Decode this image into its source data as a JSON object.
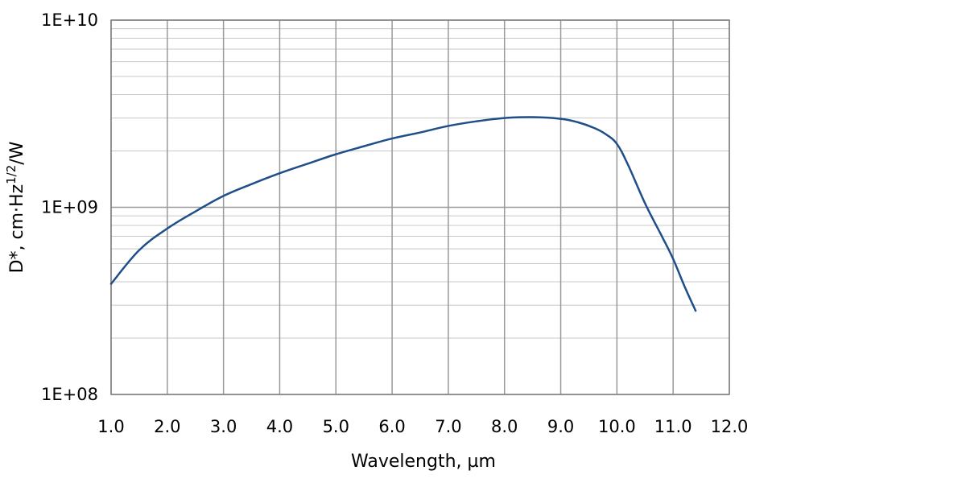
{
  "chart_data": {
    "type": "line",
    "xlabel": "Wavelength, µm",
    "ylabel": {
      "prefix": "D*, cm·Hz",
      "superscript": "1/2",
      "suffix": "/W"
    },
    "x_scale": "linear",
    "y_scale": "log",
    "xlim": [
      1.0,
      12.0
    ],
    "ylim": [
      100000000,
      10000000000
    ],
    "x_ticks": [
      {
        "value": 1,
        "label": "1.0"
      },
      {
        "value": 2,
        "label": "2.0"
      },
      {
        "value": 3,
        "label": "3.0"
      },
      {
        "value": 4,
        "label": "4.0"
      },
      {
        "value": 5,
        "label": "5.0"
      },
      {
        "value": 6,
        "label": "6.0"
      },
      {
        "value": 7,
        "label": "7.0"
      },
      {
        "value": 8,
        "label": "8.0"
      },
      {
        "value": 9,
        "label": "9.0"
      },
      {
        "value": 10,
        "label": "10.0"
      },
      {
        "value": 11,
        "label": "11.0"
      },
      {
        "value": 12,
        "label": "12.0"
      }
    ],
    "y_ticks": [
      {
        "value": 100000000,
        "label": "1E+08"
      },
      {
        "value": 1000000000,
        "label": "1E+09"
      },
      {
        "value": 10000000000,
        "label": "1E+10"
      }
    ],
    "grid": true,
    "minor_grid_y": true,
    "legend": "none",
    "line_color": "#1f4e89",
    "grid_color": "#999999",
    "series": [
      {
        "x": [
          1.0,
          1.5,
          2.0,
          2.5,
          3.0,
          3.5,
          4.0,
          4.5,
          5.0,
          5.5,
          6.0,
          6.5,
          7.0,
          7.5,
          8.0,
          8.5,
          9.0,
          9.3,
          9.6,
          9.8,
          10.0,
          10.2,
          10.5,
          10.8,
          11.0,
          11.2,
          11.4
        ],
        "y": [
          390000000,
          590000000,
          770000000,
          950000000,
          1150000000,
          1330000000,
          1520000000,
          1710000000,
          1920000000,
          2120000000,
          2330000000,
          2510000000,
          2720000000,
          2880000000,
          3000000000,
          3030000000,
          2970000000,
          2850000000,
          2650000000,
          2460000000,
          2180000000,
          1680000000,
          1050000000,
          700000000,
          530000000,
          380000000,
          280000000
        ]
      }
    ]
  }
}
